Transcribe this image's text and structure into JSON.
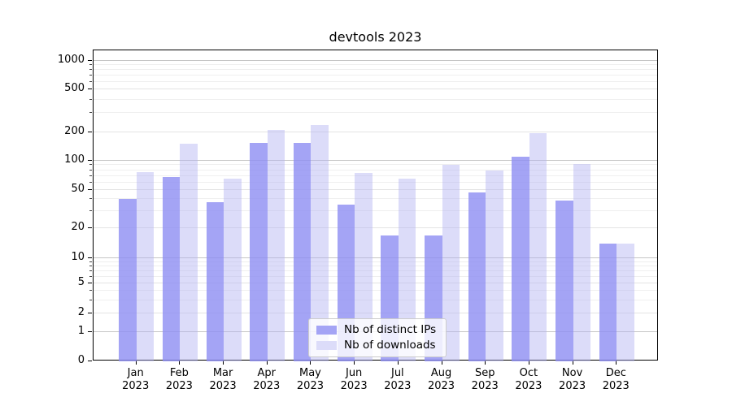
{
  "chart_data": {
    "type": "bar",
    "title": "devtools 2023",
    "categories": [
      "Jan",
      "Feb",
      "Mar",
      "Apr",
      "May",
      "Jun",
      "Jul",
      "Aug",
      "Sep",
      "Oct",
      "Nov",
      "Dec"
    ],
    "year": "2023",
    "series": [
      {
        "name": "Nb of distinct IPs",
        "color": "#a4a4f5",
        "values": [
          40,
          68,
          37,
          155,
          155,
          35,
          17,
          17,
          47,
          110,
          39,
          14
        ]
      },
      {
        "name": "Nb of downloads",
        "color": "#dcdcf9",
        "values": [
          76,
          150,
          65,
          210,
          230,
          75,
          66,
          90,
          79,
          195,
          93,
          14
        ]
      }
    ],
    "yticks": [
      0,
      1,
      2,
      5,
      10,
      20,
      50,
      100,
      200,
      500,
      1000
    ],
    "yscale": "asinh",
    "ylim": [
      0,
      1150
    ],
    "xlabel": "",
    "ylabel": "",
    "grid": true,
    "legend_position": "lower-center",
    "background_color": "#ffffff",
    "axis_color": "#000000"
  }
}
